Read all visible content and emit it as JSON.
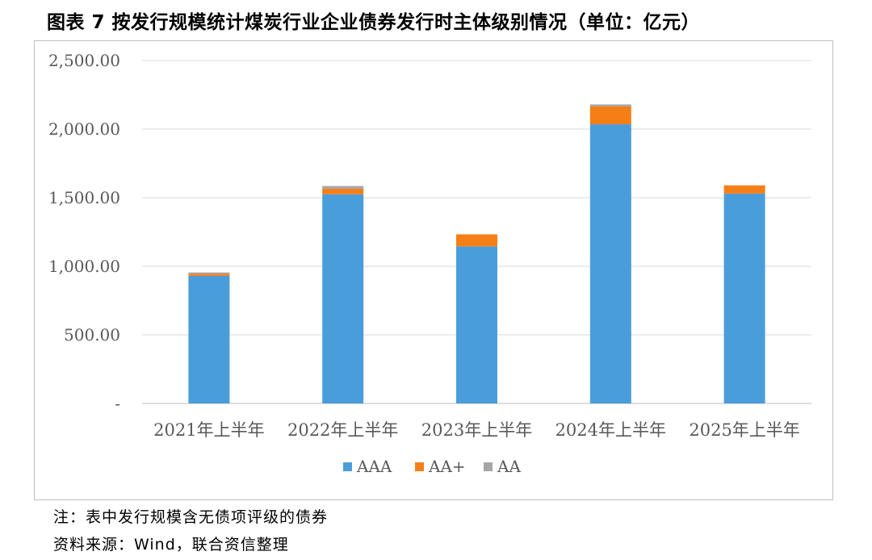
{
  "title": "图表 7  按发行规模统计煤炭行业企业债券发行时主体级别情况（单位：亿元）",
  "notes": {
    "note": "注：表中发行规模含无债项评级的债券",
    "source": "资料来源：Wind，联合资信整理"
  },
  "colors": {
    "AAA": "#4a9ddb",
    "AA+": "#f57f17",
    "AA": "#a6a6a6",
    "grid": "#d9d9d9",
    "axis": "#bfbfbf"
  },
  "chart_data": {
    "type": "bar",
    "stacked": true,
    "categories": [
      "2021年上半年",
      "2022年上半年",
      "2023年上半年",
      "2024年上半年",
      "2025年上半年"
    ],
    "series": [
      {
        "name": "AAA",
        "values": [
          930,
          1525,
          1145,
          2035,
          1530
        ]
      },
      {
        "name": "AA+",
        "values": [
          15,
          40,
          88,
          130,
          60
        ]
      },
      {
        "name": "AA",
        "values": [
          10,
          20,
          0,
          15,
          0
        ]
      }
    ],
    "yticks": [
      "-",
      "500.00",
      "1,000.00",
      "1,500.00",
      "2,000.00",
      "2,500.00"
    ],
    "ylim": [
      0,
      2500
    ],
    "grid": true,
    "legend_position": "bottom"
  }
}
